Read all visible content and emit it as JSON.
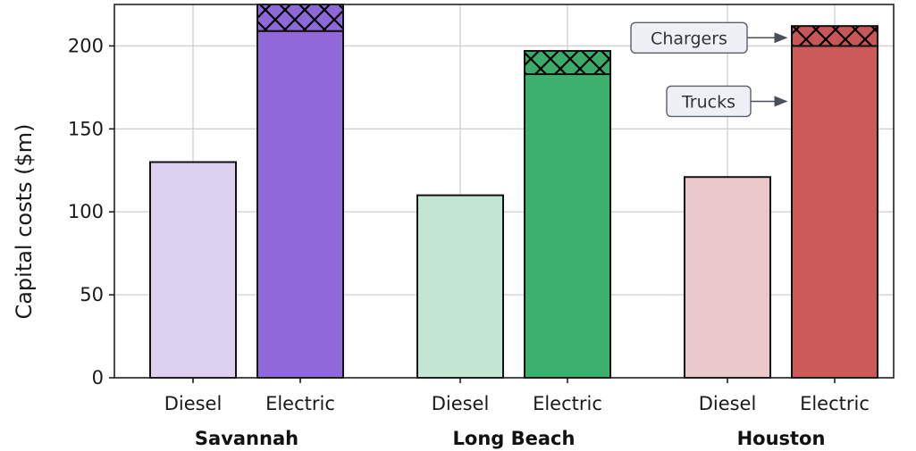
{
  "chart_data": {
    "type": "bar",
    "stacked": true,
    "ylabel": "Capital costs ($m)",
    "xlabel": "",
    "ylim": [
      0,
      225
    ],
    "yticks": [
      0,
      50,
      100,
      150,
      200
    ],
    "grid": true,
    "groups": [
      "Savannah",
      "Long Beach",
      "Houston"
    ],
    "categories": [
      "Diesel",
      "Electric"
    ],
    "series": [
      {
        "name": "Trucks",
        "values": [
          [
            130,
            209
          ],
          [
            110,
            183
          ],
          [
            121,
            200
          ]
        ]
      },
      {
        "name": "Chargers",
        "values": [
          [
            0,
            16
          ],
          [
            0,
            14
          ],
          [
            0,
            12
          ]
        ]
      }
    ],
    "colors": {
      "Savannah": {
        "Diesel": "#dcd2f0",
        "Electric": "#9068da",
        "Chargers": "#8c68d8"
      },
      "Long Beach": {
        "Diesel": "#c2e6d3",
        "Electric": "#3db06d",
        "Chargers": "#3aab69"
      },
      "Houston": {
        "Diesel": "#e9c9c9",
        "Electric": "#cc5a5a",
        "Chargers": "#c85656"
      }
    },
    "annotations": [
      {
        "text": "Chargers",
        "points_to": "Houston Electric Chargers"
      },
      {
        "text": "Trucks",
        "points_to": "Houston Electric Trucks"
      }
    ]
  }
}
